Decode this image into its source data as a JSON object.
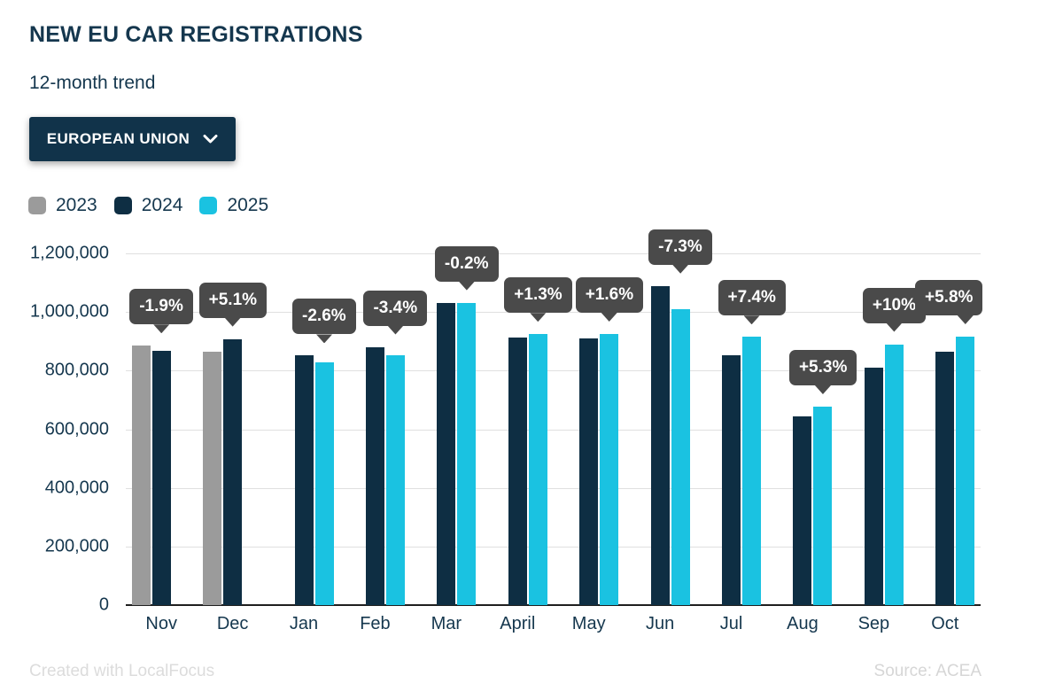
{
  "header": {
    "title": "NEW EU CAR REGISTRATIONS",
    "subtitle": "12-month trend"
  },
  "region_selector": {
    "label": "EUROPEAN UNION",
    "icon": "chevron-down-icon"
  },
  "legend": [
    {
      "label": "2023",
      "color": "#9b9b9b"
    },
    {
      "label": "2024",
      "color": "#0e2e43"
    },
    {
      "label": "2025",
      "color": "#1ac2e1"
    }
  ],
  "footer": {
    "left": "Created with LocalFocus",
    "right": "Source: ACEA"
  },
  "chart_data": {
    "type": "bar",
    "title": "NEW EU CAR REGISTRATIONS",
    "subtitle": "12-month trend",
    "categories": [
      "Nov",
      "Dec",
      "Jan",
      "Feb",
      "Mar",
      "April",
      "May",
      "Jun",
      "Jul",
      "Aug",
      "Sep",
      "Oct"
    ],
    "series": [
      {
        "name": "2023",
        "color": "#9b9b9b",
        "values": [
          885000,
          864000,
          null,
          null,
          null,
          null,
          null,
          null,
          null,
          null,
          null,
          null
        ]
      },
      {
        "name": "2024",
        "color": "#0e2e43",
        "values": [
          868000,
          908000,
          851000,
          881000,
          1032000,
          912000,
          910000,
          1089000,
          852000,
          643000,
          809000,
          866000
        ]
      },
      {
        "name": "2025",
        "color": "#1ac2e1",
        "values": [
          null,
          null,
          829000,
          851000,
          1030000,
          924000,
          925000,
          1010000,
          915000,
          677000,
          890000,
          916000
        ]
      }
    ],
    "change_labels": [
      "-1.9%",
      "+5.1%",
      "-2.6%",
      "-3.4%",
      "-0.2%",
      "+1.3%",
      "+1.6%",
      "-7.3%",
      "+7.4%",
      "+5.3%",
      "+10%",
      "+5.8%"
    ],
    "xlabel": "",
    "ylabel": "",
    "ylim": [
      0,
      1200000
    ],
    "ytick_step": 200000,
    "ytick_labels": [
      "0",
      "200,000",
      "400,000",
      "600,000",
      "800,000",
      "1,000,000",
      "1,200,000"
    ],
    "grid": true,
    "legend_position": "top-left",
    "tooltip_bg": "#4a4a4a",
    "gridline_color": "#e0e0e0"
  }
}
